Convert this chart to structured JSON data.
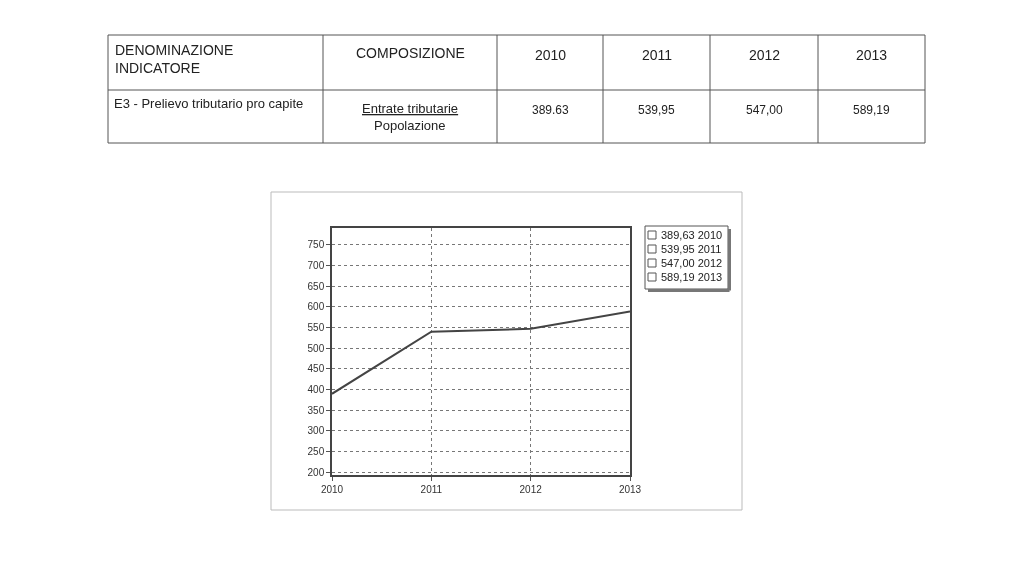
{
  "chart_data": {
    "type": "line",
    "x": [
      2010,
      2011,
      2012,
      2013
    ],
    "values": [
      389.63,
      539.95,
      547.0,
      589.19
    ],
    "color": "#444444",
    "xlim": [
      2010,
      2013
    ],
    "xticks": [
      2010,
      2011,
      2012,
      2013
    ],
    "ylim": [
      193,
      791
    ],
    "yticks": [
      200,
      250,
      300,
      350,
      400,
      450,
      500,
      550,
      600,
      650,
      700,
      750
    ],
    "grid": true,
    "annotations": [
      "DENOMINAZIONE\nINDICATORE",
      "COMPOSIZIONE",
      "2010",
      "2011",
      "2012",
      "2013",
      "E3 - Prelievo tributario pro capite",
      "Entrate tributarie",
      "Popolazione",
      "389.63",
      "539,95",
      "547,00",
      "589,19",
      "389,63 2010",
      "539,95 2011",
      "547,00 2012",
      "589,19 2013"
    ]
  }
}
